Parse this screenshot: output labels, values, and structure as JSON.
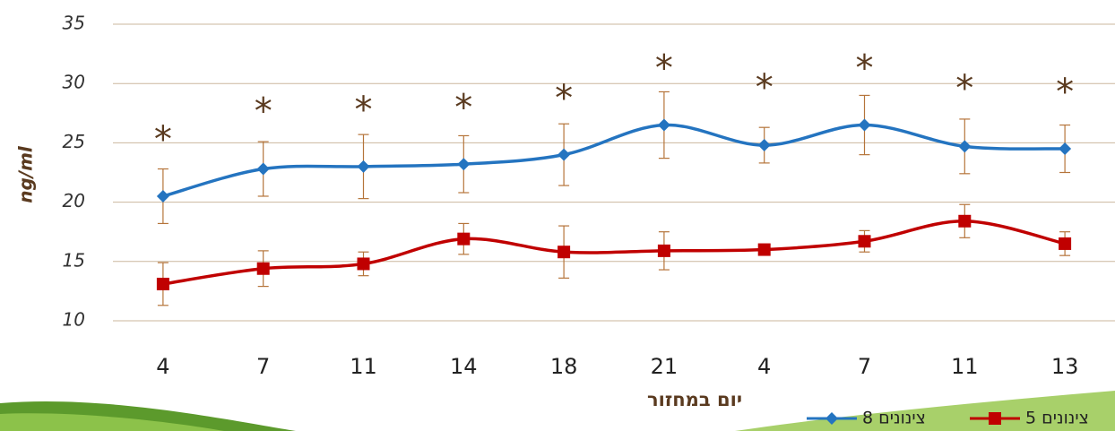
{
  "chart_data": {
    "type": "line",
    "categories": [
      "4",
      "7",
      "11",
      "14",
      "18",
      "21",
      "4",
      "7",
      "11",
      "13"
    ],
    "series": [
      {
        "name": "8 צינונים",
        "color": "#2474c0",
        "marker": "diamond",
        "values": [
          20.5,
          22.8,
          23.0,
          23.2,
          24.0,
          26.5,
          24.8,
          26.5,
          24.7,
          24.5
        ],
        "errors": [
          2.3,
          2.3,
          2.7,
          2.4,
          2.6,
          2.8,
          1.5,
          2.5,
          2.3,
          2.0
        ]
      },
      {
        "name": "5 צינונים",
        "color": "#c00000",
        "marker": "square",
        "values": [
          13.1,
          14.4,
          14.8,
          16.9,
          15.8,
          15.9,
          16.0,
          16.7,
          18.4,
          16.5
        ],
        "errors": [
          1.8,
          1.5,
          1.0,
          1.3,
          2.2,
          1.6,
          0.3,
          0.9,
          1.4,
          1.0
        ]
      }
    ],
    "significance": {
      "label": "*",
      "values": [
        26.0,
        28.4,
        28.5,
        28.7,
        29.5,
        32.0,
        30.4,
        32.0,
        30.3,
        30.0
      ]
    },
    "xlabel": "יום במחזור",
    "ylabel": "ng/ml",
    "ylim": [
      10,
      35
    ],
    "yticks": [
      10,
      15,
      20,
      25,
      30,
      35
    ],
    "grid": true,
    "legend": "bottom-right"
  }
}
